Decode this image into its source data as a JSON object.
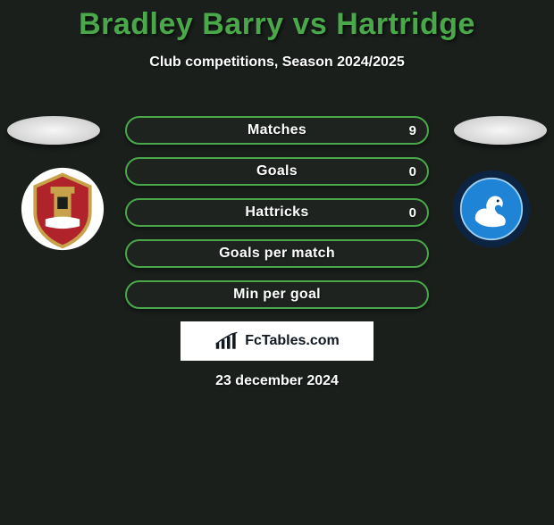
{
  "title": {
    "text": "Bradley Barry vs Hartridge",
    "color": "#4aa84a",
    "fontsize": 34
  },
  "subtitle": {
    "text": "Club competitions, Season 2024/2025",
    "fontsize": 16
  },
  "background_color": "#1a1f1c",
  "clubs": {
    "left": {
      "name": "Stevenage",
      "badge_primary": "#c7a24a",
      "badge_secondary": "#b0232a",
      "badge_bg": "#ffffff"
    },
    "right": {
      "name": "Wycombe Wanderers",
      "ring_outer": "#0c2342",
      "ring_inner": "#1f83d6",
      "swan": "#ffffff"
    }
  },
  "stats": {
    "border_color": "#4aa84a",
    "fill_color": "rgba(255,255,255,0.02)",
    "label_fontsize": 16,
    "value_fontsize": 15,
    "rows": [
      {
        "label": "Matches",
        "left": "",
        "right": "9"
      },
      {
        "label": "Goals",
        "left": "",
        "right": "0"
      },
      {
        "label": "Hattricks",
        "left": "",
        "right": "0"
      },
      {
        "label": "Goals per match",
        "left": "",
        "right": ""
      },
      {
        "label": "Min per goal",
        "left": "",
        "right": ""
      }
    ]
  },
  "branding": {
    "text": "FcTables.com",
    "bg": "#ffffff",
    "fg": "#111820"
  },
  "date": "23 december 2024"
}
